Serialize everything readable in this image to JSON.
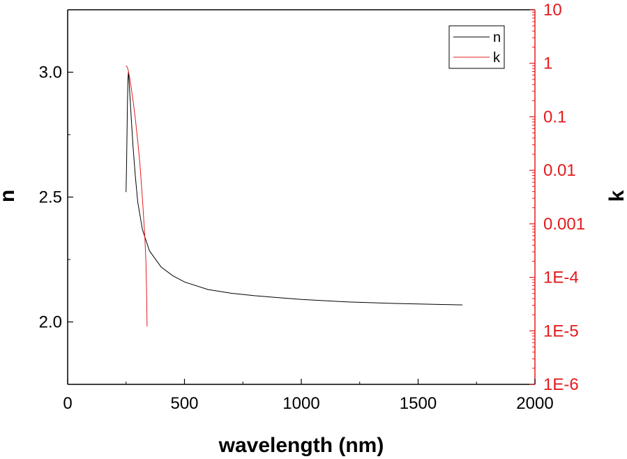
{
  "chart_data": {
    "type": "line",
    "title": "",
    "xlabel": "wavelength (nm)",
    "ylabel_left": "n",
    "ylabel_right": "k",
    "xlim": [
      0,
      2000
    ],
    "ylim_left": [
      1.75,
      3.25
    ],
    "ylim_right": [
      1e-06,
      10
    ],
    "right_scale": "log",
    "grid": false,
    "legend_position": "top-right",
    "x_ticks": [
      {
        "value": 0,
        "label": "0"
      },
      {
        "value": 500,
        "label": "500"
      },
      {
        "value": 1000,
        "label": "1000"
      },
      {
        "value": 1500,
        "label": "1500"
      },
      {
        "value": 2000,
        "label": "2000"
      }
    ],
    "y_left_ticks": [
      {
        "value": 2.0,
        "label": "2.0"
      },
      {
        "value": 2.5,
        "label": "2.5"
      },
      {
        "value": 3.0,
        "label": "3.0"
      }
    ],
    "y_right_ticks": [
      {
        "value": 1e-06,
        "label": "1E-6"
      },
      {
        "value": 1e-05,
        "label": "1E-5"
      },
      {
        "value": 0.0001,
        "label": "1E-4"
      },
      {
        "value": 0.001,
        "label": "0.001"
      },
      {
        "value": 0.01,
        "label": "0.01"
      },
      {
        "value": 0.1,
        "label": "0.1"
      },
      {
        "value": 1,
        "label": "1"
      },
      {
        "value": 10,
        "label": "10"
      }
    ],
    "series": [
      {
        "name": "n",
        "axis": "left",
        "color": "#000000",
        "x": [
          250,
          252,
          254,
          256,
          258,
          260,
          262,
          265,
          270,
          280,
          290,
          300,
          320,
          350,
          400,
          450,
          500,
          600,
          700,
          800,
          1000,
          1200,
          1400,
          1600,
          1690
        ],
        "y": [
          2.52,
          2.62,
          2.75,
          2.88,
          2.97,
          3.0,
          2.98,
          2.93,
          2.85,
          2.7,
          2.58,
          2.48,
          2.37,
          2.285,
          2.22,
          2.185,
          2.16,
          2.13,
          2.115,
          2.105,
          2.09,
          2.08,
          2.074,
          2.07,
          2.068
        ]
      },
      {
        "name": "k",
        "axis": "right",
        "color": "#e31a1c",
        "x": [
          250,
          255,
          260,
          265,
          270,
          280,
          290,
          300,
          310,
          320,
          330,
          335,
          338,
          340
        ],
        "y": [
          0.9,
          0.85,
          0.72,
          0.55,
          0.4,
          0.2,
          0.09,
          0.035,
          0.012,
          0.003,
          0.0006,
          0.0002,
          5e-05,
          1.2e-05
        ]
      }
    ]
  }
}
